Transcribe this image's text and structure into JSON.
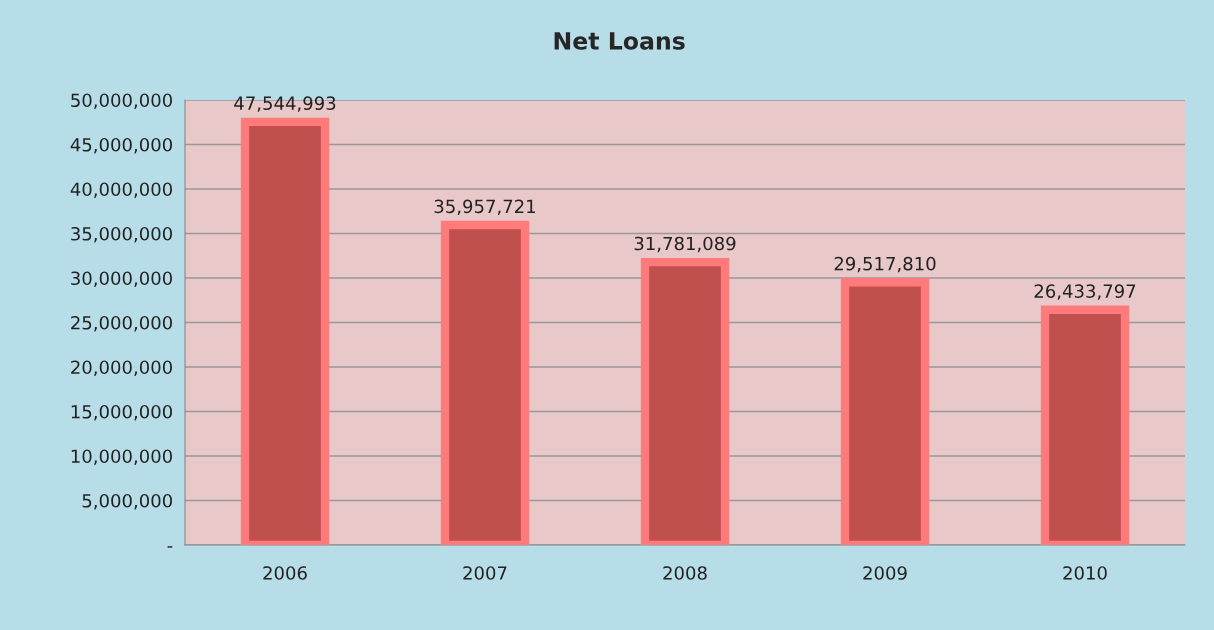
{
  "chart_data": {
    "type": "bar",
    "title": "Net Loans",
    "categories": [
      "2006",
      "2007",
      "2008",
      "2009",
      "2010"
    ],
    "values": [
      47544993,
      35957721,
      31781089,
      29517810,
      26433797
    ],
    "color": "#c0504d",
    "value_labels": [
      "47,544,993",
      "35,957,721",
      "31,781,089",
      "29,517,810",
      "26,433,797"
    ],
    "ylim": [
      0,
      50000000
    ],
    "yticks": [
      {
        "value": 0,
        "label": "-"
      },
      {
        "value": 5000000,
        "label": "5,000,000"
      },
      {
        "value": 10000000,
        "label": "10,000,000"
      },
      {
        "value": 15000000,
        "label": "15,000,000"
      },
      {
        "value": 20000000,
        "label": "20,000,000"
      },
      {
        "value": 25000000,
        "label": "25,000,000"
      },
      {
        "value": 30000000,
        "label": "30,000,000"
      },
      {
        "value": 35000000,
        "label": "35,000,000"
      },
      {
        "value": 40000000,
        "label": "40,000,000"
      },
      {
        "value": 45000000,
        "label": "45,000,000"
      },
      {
        "value": 50000000,
        "label": "50,000,000"
      }
    ],
    "grid": "y",
    "legend": false
  }
}
